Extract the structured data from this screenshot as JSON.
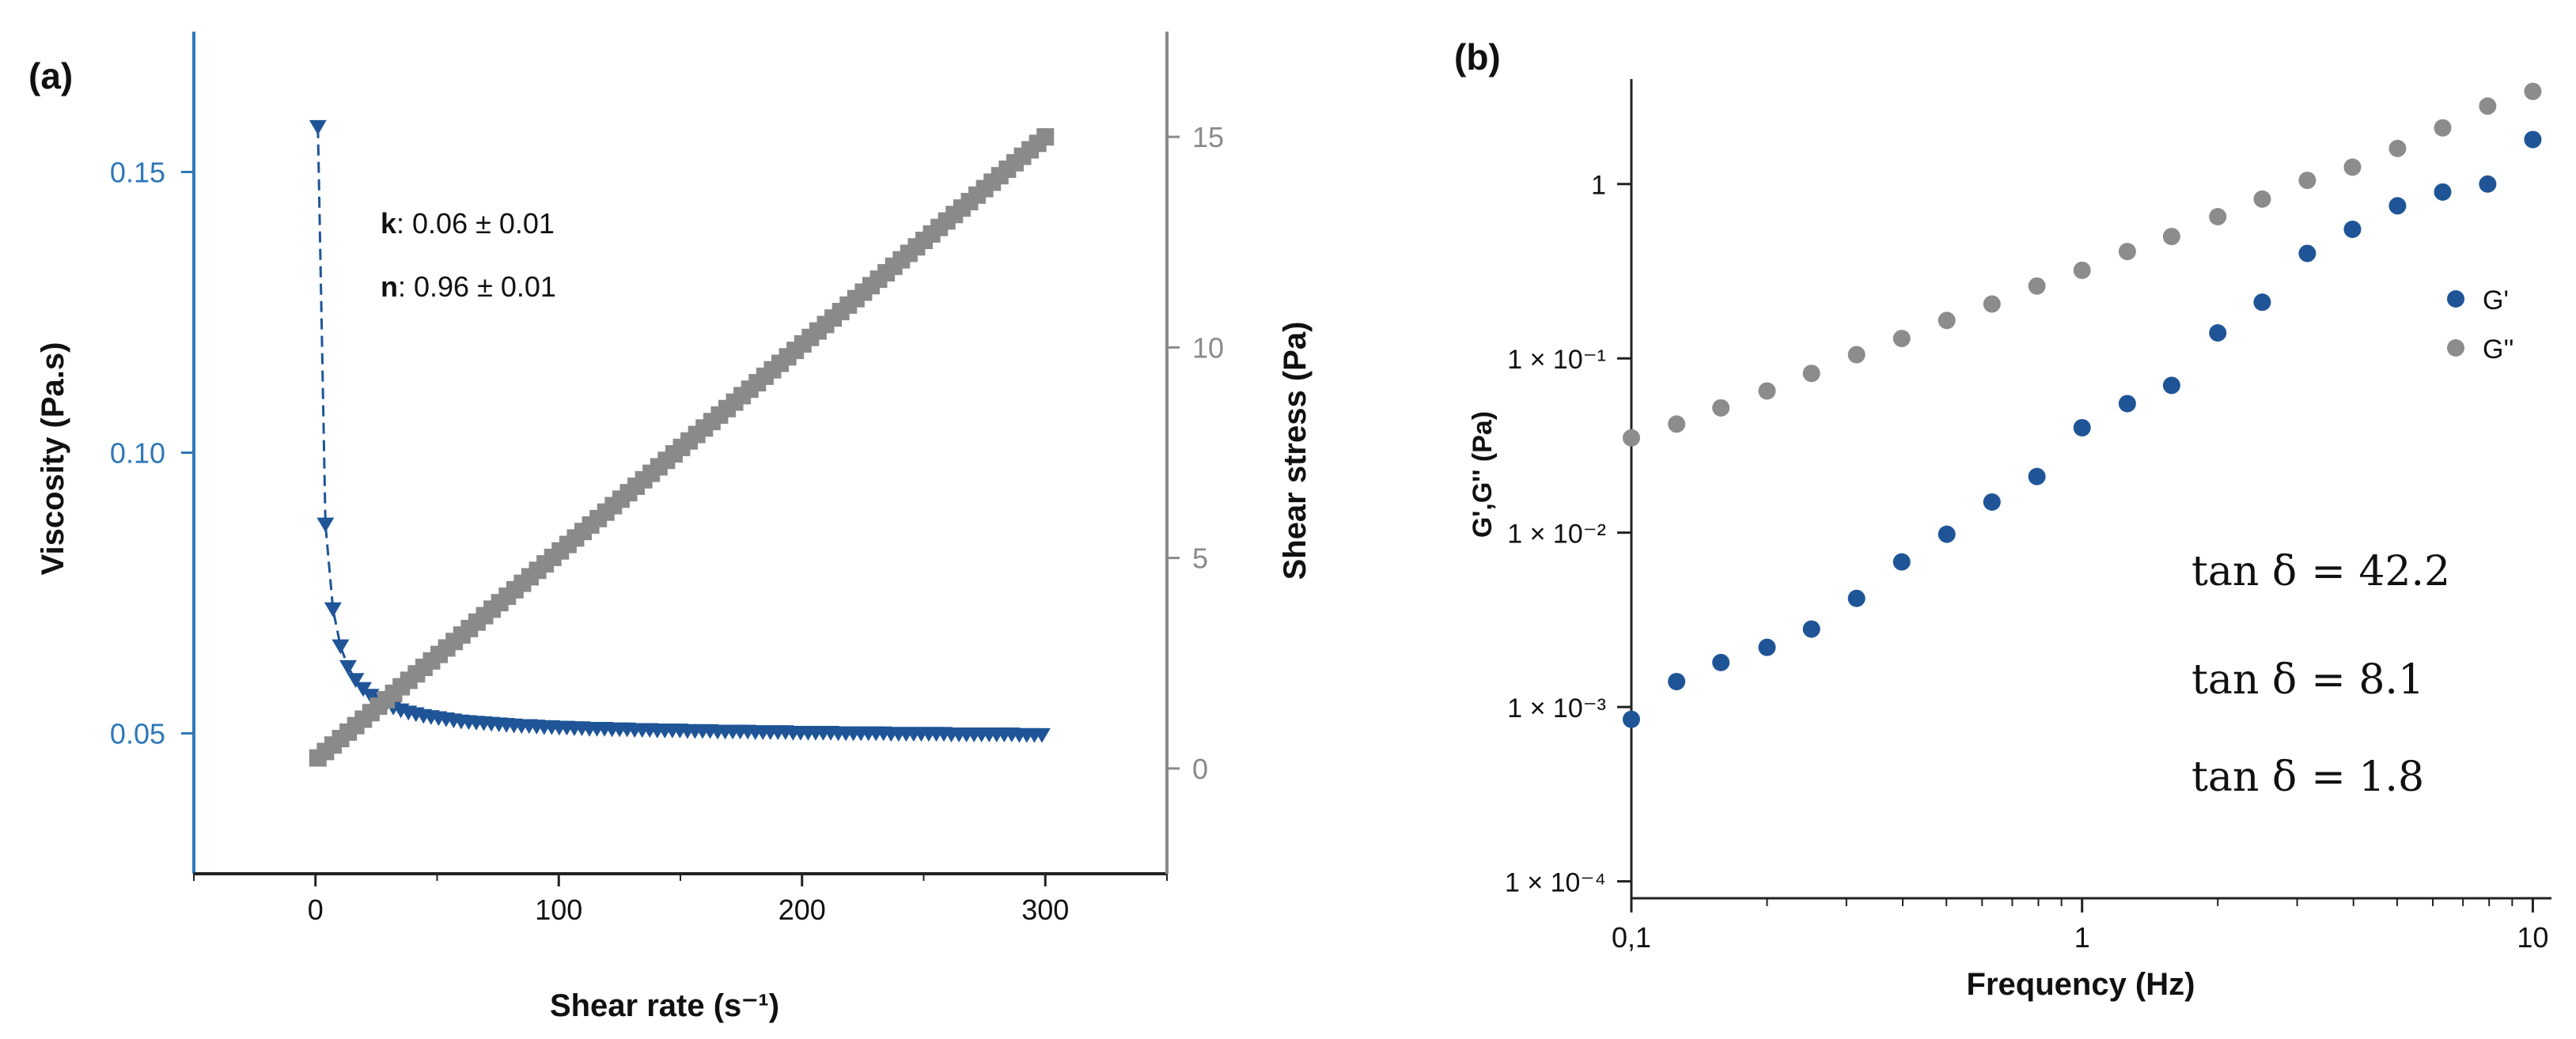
{
  "colors": {
    "viscosity": "#1f5597",
    "stress": "#8a8a8a",
    "gprime": "#1f5597",
    "gdoubleprime": "#8c8c8c",
    "left_axis_text": "#2f78b8",
    "right_axis": "#8a8a8a",
    "axis": "#222222"
  },
  "chart_data": [
    {
      "panel_label": "(a)",
      "type": "scatter",
      "title": "",
      "xlabel": "Shear rate (s⁻¹)",
      "ylabel_left": "Viscosity (Pa.s)",
      "ylabel_right": "Shear stress (Pa)",
      "xlim": [
        -50,
        350
      ],
      "ylim_left": [
        0.025,
        0.175
      ],
      "ylim_right": [
        -2.5,
        17.5
      ],
      "x_ticks": [
        "0",
        "100",
        "200",
        "300"
      ],
      "x_tick_values": [
        0,
        100,
        200,
        300
      ],
      "y_left_ticks": [
        "0.05",
        "0.10",
        "0.15"
      ],
      "y_left_tick_values": [
        0.05,
        0.1,
        0.15
      ],
      "y_right_ticks": [
        "0",
        "5",
        "10",
        "15"
      ],
      "y_right_tick_values": [
        0,
        5,
        10,
        15
      ],
      "annotations": [
        {
          "bold": "k",
          "text": ": 0.06 ± 0.01"
        },
        {
          "bold": "n",
          "text": ": 0.96 ± 0.01"
        }
      ],
      "series": [
        {
          "name": "Viscosity",
          "axis": "left",
          "marker": "triangle-down",
          "x": [
            1.0,
            4.1,
            7.2,
            10.3,
            13.4,
            16.5,
            19.6,
            22.7,
            25.8,
            28.9,
            32.0,
            35.1,
            38.2,
            41.3,
            44.4,
            47.5,
            50.6,
            53.7,
            56.8,
            59.9,
            63.0,
            66.1,
            69.2,
            72.3,
            75.4,
            78.5,
            81.6,
            84.7,
            87.8,
            90.9,
            94.0,
            97.1,
            100.2,
            103.3,
            106.4,
            109.5,
            112.6,
            115.7,
            118.8,
            121.9,
            125.0,
            128.1,
            131.2,
            134.3,
            137.4,
            140.5,
            143.6,
            146.7,
            149.8,
            152.9,
            156.0,
            159.1,
            162.2,
            165.3,
            168.4,
            171.5,
            174.6,
            177.7,
            180.8,
            183.9,
            187.0,
            190.1,
            193.2,
            196.3,
            199.4,
            202.5,
            205.6,
            208.7,
            211.8,
            214.9,
            218.0,
            221.1,
            224.2,
            227.3,
            230.4,
            233.5,
            236.6,
            239.7,
            242.8,
            245.9,
            249.0,
            252.1,
            255.2,
            258.3,
            261.4,
            264.5,
            267.6,
            270.7,
            273.8,
            276.9,
            280.0,
            283.1,
            286.2,
            289.3,
            292.4,
            295.5,
            298.6
          ],
          "y": [
            0.158,
            0.0872,
            0.0721,
            0.0655,
            0.0618,
            0.0595,
            0.0579,
            0.0567,
            0.0558,
            0.0551,
            0.0546,
            0.0541,
            0.0537,
            0.0534,
            0.0531,
            0.0529,
            0.0527,
            0.0525,
            0.0523,
            0.0521,
            0.052,
            0.0519,
            0.0518,
            0.0517,
            0.0516,
            0.0515,
            0.0514,
            0.0513,
            0.0513,
            0.0512,
            0.0511,
            0.0511,
            0.051,
            0.051,
            0.0509,
            0.0509,
            0.0508,
            0.0508,
            0.0508,
            0.0507,
            0.0507,
            0.0507,
            0.0506,
            0.0506,
            0.0506,
            0.0505,
            0.0505,
            0.0505,
            0.0505,
            0.0504,
            0.0504,
            0.0504,
            0.0504,
            0.0503,
            0.0503,
            0.0503,
            0.0503,
            0.0503,
            0.0502,
            0.0502,
            0.0502,
            0.0502,
            0.0502,
            0.0501,
            0.0501,
            0.0501,
            0.0501,
            0.0501,
            0.0501,
            0.05,
            0.05,
            0.05,
            0.05,
            0.05,
            0.05,
            0.05,
            0.0499,
            0.0499,
            0.0499,
            0.0499,
            0.0499,
            0.0499,
            0.0499,
            0.0499,
            0.0498,
            0.0498,
            0.0498,
            0.0498,
            0.0498,
            0.0498,
            0.0498,
            0.0498,
            0.0498,
            0.0497,
            0.0497,
            0.0497,
            0.0497
          ]
        },
        {
          "name": "Shear stress",
          "axis": "right",
          "marker": "square",
          "x_start": 1,
          "x_end": 300,
          "points": 97,
          "y_start": 0.25,
          "y_end": 15.0
        }
      ]
    },
    {
      "panel_label": "(b)",
      "type": "scatter",
      "scale": "log-log",
      "xlabel": "Frequency (Hz)",
      "ylabel": "G',G'' (Pa)",
      "xlim": [
        0.1,
        11
      ],
      "ylim": [
        8e-05,
        4
      ],
      "x_ticks": [
        "0,1",
        "1",
        "10"
      ],
      "x_tick_values": [
        0.1,
        1,
        10
      ],
      "y_ticks": [
        "1 × 10⁻⁴",
        "1 × 10⁻³",
        "1 × 10⁻²",
        "1 × 10⁻¹",
        "1"
      ],
      "y_tick_values": [
        0.0001,
        0.001,
        0.01,
        0.1,
        1
      ],
      "legend": {
        "position": "right",
        "entries": [
          "G'",
          "G''"
        ]
      },
      "annotations": [
        {
          "label": "tan δ",
          "value": "= 42.2"
        },
        {
          "label": "tan δ",
          "value": "= 8.1"
        },
        {
          "label": "tan δ",
          "value": "= 1.8"
        }
      ],
      "series": [
        {
          "name": "G'",
          "x": [
            0.1,
            0.126,
            0.158,
            0.2,
            0.251,
            0.316,
            0.398,
            0.501,
            0.631,
            0.794,
            1.0,
            1.26,
            1.58,
            2.0,
            2.51,
            3.16,
            3.98,
            5.01,
            6.31,
            7.94,
            10.0
          ],
          "y": [
            0.00085,
            0.0014,
            0.0018,
            0.0022,
            0.0028,
            0.0042,
            0.0068,
            0.0098,
            0.015,
            0.021,
            0.04,
            0.055,
            0.07,
            0.14,
            0.21,
            0.4,
            0.55,
            0.75,
            0.9,
            1.0,
            1.8
          ]
        },
        {
          "name": "G''",
          "x": [
            0.1,
            0.126,
            0.158,
            0.2,
            0.251,
            0.316,
            0.398,
            0.501,
            0.631,
            0.794,
            1.0,
            1.26,
            1.58,
            2.0,
            2.51,
            3.16,
            3.98,
            5.01,
            6.31,
            7.94,
            10.0
          ],
          "y": [
            0.035,
            0.042,
            0.052,
            0.065,
            0.082,
            0.105,
            0.13,
            0.165,
            0.205,
            0.26,
            0.32,
            0.41,
            0.5,
            0.65,
            0.82,
            1.05,
            1.25,
            1.6,
            2.1,
            2.8,
            3.4
          ]
        }
      ]
    }
  ]
}
